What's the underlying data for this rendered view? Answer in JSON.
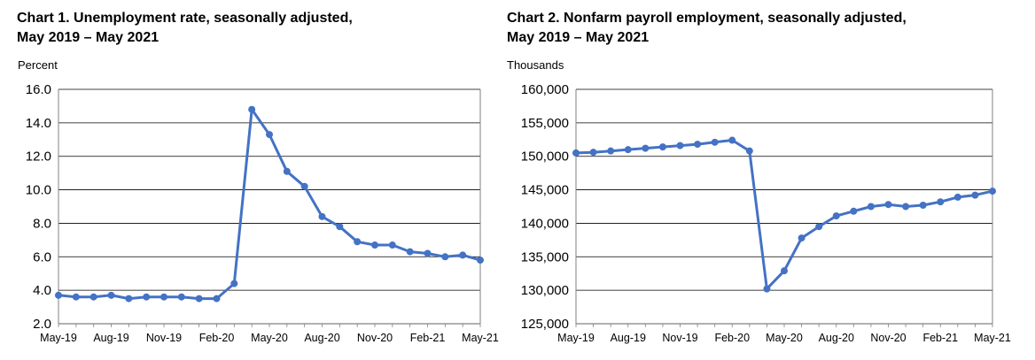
{
  "colors": {
    "line": "#4472C4",
    "grid": "#000000",
    "frame": "#808080"
  },
  "chart_data": [
    {
      "type": "line",
      "title_line1": "Chart 1. Unemployment rate, seasonally adjusted,",
      "title_line2": "May 2019 – May 2021",
      "ylabel": "Percent",
      "ylim": [
        2.0,
        16.0
      ],
      "y_ticks": [
        "2.0",
        "4.0",
        "6.0",
        "8.0",
        "10.0",
        "12.0",
        "14.0",
        "16.0"
      ],
      "y_tick_values": [
        2,
        4,
        6,
        8,
        10,
        12,
        14,
        16
      ],
      "x_tick_labels": [
        "May-19",
        "Aug-19",
        "Nov-19",
        "Feb-20",
        "May-20",
        "Aug-20",
        "Nov-20",
        "Feb-21",
        "May-21"
      ],
      "x_tick_index": [
        0,
        3,
        6,
        9,
        12,
        15,
        18,
        21,
        24
      ],
      "categories": [
        "May-19",
        "Jun-19",
        "Jul-19",
        "Aug-19",
        "Sep-19",
        "Oct-19",
        "Nov-19",
        "Dec-19",
        "Jan-20",
        "Feb-20",
        "Mar-20",
        "Apr-20",
        "May-20",
        "Jun-20",
        "Jul-20",
        "Aug-20",
        "Sep-20",
        "Oct-20",
        "Nov-20",
        "Dec-20",
        "Jan-21",
        "Feb-21",
        "Mar-21",
        "Apr-21",
        "May-21"
      ],
      "values": [
        3.7,
        3.6,
        3.6,
        3.7,
        3.5,
        3.6,
        3.6,
        3.6,
        3.5,
        3.5,
        4.4,
        14.8,
        13.3,
        11.1,
        10.2,
        8.4,
        7.8,
        6.9,
        6.7,
        6.7,
        6.3,
        6.2,
        6.0,
        6.1,
        5.8
      ]
    },
    {
      "type": "line",
      "title_line1": "Chart 2. Nonfarm payroll employment, seasonally adjusted,",
      "title_line2": "May 2019 – May 2021",
      "ylabel": "Thousands",
      "ylim": [
        125000,
        160000
      ],
      "y_ticks": [
        "125,000",
        "130,000",
        "135,000",
        "140,000",
        "145,000",
        "150,000",
        "155,000",
        "160,000"
      ],
      "y_tick_values": [
        125000,
        130000,
        135000,
        140000,
        145000,
        150000,
        155000,
        160000
      ],
      "x_tick_labels": [
        "May-19",
        "Aug-19",
        "Nov-19",
        "Feb-20",
        "May-20",
        "Aug-20",
        "Nov-20",
        "Feb-21",
        "May-21"
      ],
      "x_tick_index": [
        0,
        3,
        6,
        9,
        12,
        15,
        18,
        21,
        24
      ],
      "categories": [
        "May-19",
        "Jun-19",
        "Jul-19",
        "Aug-19",
        "Sep-19",
        "Oct-19",
        "Nov-19",
        "Dec-19",
        "Jan-20",
        "Feb-20",
        "Mar-20",
        "Apr-20",
        "May-20",
        "Jun-20",
        "Jul-20",
        "Aug-20",
        "Sep-20",
        "Oct-20",
        "Nov-20",
        "Dec-20",
        "Jan-21",
        "Feb-21",
        "Mar-21",
        "Apr-21",
        "May-21"
      ],
      "values": [
        150500,
        150600,
        150800,
        151000,
        151200,
        151400,
        151600,
        151800,
        152100,
        152400,
        150800,
        130200,
        132900,
        137800,
        139500,
        141100,
        141800,
        142500,
        142800,
        142500,
        142700,
        143200,
        143900,
        144200,
        144800
      ]
    }
  ]
}
